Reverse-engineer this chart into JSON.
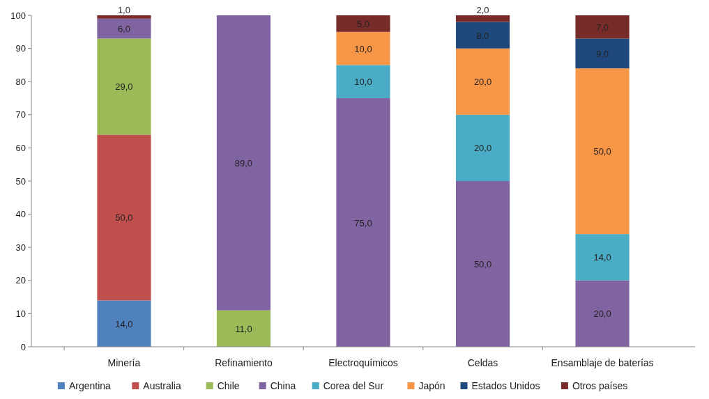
{
  "chart_data": {
    "type": "bar",
    "stacked": true,
    "categories": [
      "Minería",
      "Refinamiento",
      "Electroquímicos",
      "Celdas",
      "Ensamblaje de baterías"
    ],
    "series": [
      {
        "name": "Argentina",
        "color": "#4f81bd",
        "values": [
          14,
          null,
          null,
          null,
          null
        ],
        "value_labels": [
          "14,0",
          null,
          null,
          null,
          null
        ]
      },
      {
        "name": "Australia",
        "color": "#c0504d",
        "values": [
          50,
          null,
          null,
          null,
          null
        ],
        "value_labels": [
          "50,0",
          null,
          null,
          null,
          null
        ]
      },
      {
        "name": "Chile",
        "color": "#9bbb59",
        "values": [
          29,
          11,
          null,
          null,
          null
        ],
        "value_labels": [
          "29,0",
          "11,0",
          null,
          null,
          null
        ]
      },
      {
        "name": "China",
        "color": "#8064a2",
        "values": [
          6,
          89,
          75,
          50,
          20
        ],
        "value_labels": [
          "6,0",
          "89,0",
          "75,0",
          "50,0",
          "20,0"
        ]
      },
      {
        "name": "Corea del Sur",
        "color": "#4bacc6",
        "values": [
          null,
          null,
          10,
          20,
          14
        ],
        "value_labels": [
          null,
          null,
          "10,0",
          "20,0",
          "14,0"
        ]
      },
      {
        "name": "Japón",
        "color": "#f79646",
        "values": [
          null,
          null,
          10,
          20,
          50
        ],
        "value_labels": [
          null,
          null,
          "10,0",
          "20,0",
          "50,0"
        ]
      },
      {
        "name": "Estados Unidos",
        "color": "#1f497d",
        "values": [
          null,
          null,
          null,
          8,
          9
        ],
        "value_labels": [
          null,
          null,
          null,
          "8,0",
          "9,0"
        ]
      },
      {
        "name": "Otros países",
        "color": "#772c2a",
        "values": [
          1,
          null,
          5,
          2,
          7
        ],
        "value_labels": [
          "1,0",
          null,
          "5,0",
          "2,0",
          "7,0"
        ]
      }
    ],
    "ylim": [
      0,
      100
    ],
    "yticks": [
      0,
      10,
      20,
      30,
      40,
      50,
      60,
      70,
      80,
      90,
      100
    ],
    "grid": false,
    "legend": "bottom"
  }
}
